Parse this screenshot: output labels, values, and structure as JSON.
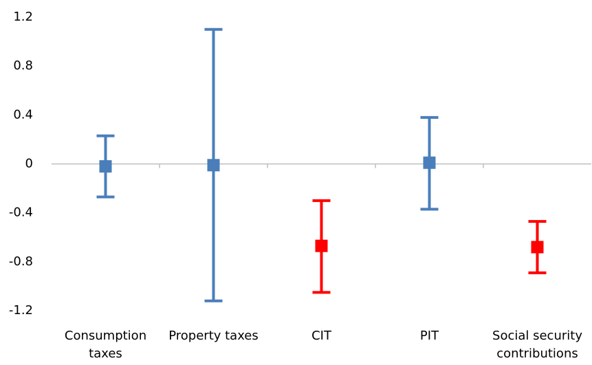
{
  "chart_data": {
    "type": "errorbar",
    "categories": [
      "Consumption taxes",
      "Property taxes",
      "CIT",
      "PIT",
      "Social security contributions"
    ],
    "values": [
      -0.02,
      -0.01,
      -0.67,
      0.01,
      -0.68
    ],
    "lower": [
      -0.27,
      -1.12,
      -1.05,
      -0.37,
      -0.89
    ],
    "upper": [
      0.23,
      1.1,
      -0.3,
      0.38,
      -0.47
    ],
    "colors": [
      "#4a7ebb",
      "#4a7ebb",
      "#ff0000",
      "#4a7ebb",
      "#ff0000"
    ],
    "ylim": [
      -1.2,
      1.2
    ],
    "yticks": [
      -1.2,
      -0.8,
      -0.4,
      0,
      0.4,
      0.8,
      1.2
    ],
    "grid": false
  }
}
